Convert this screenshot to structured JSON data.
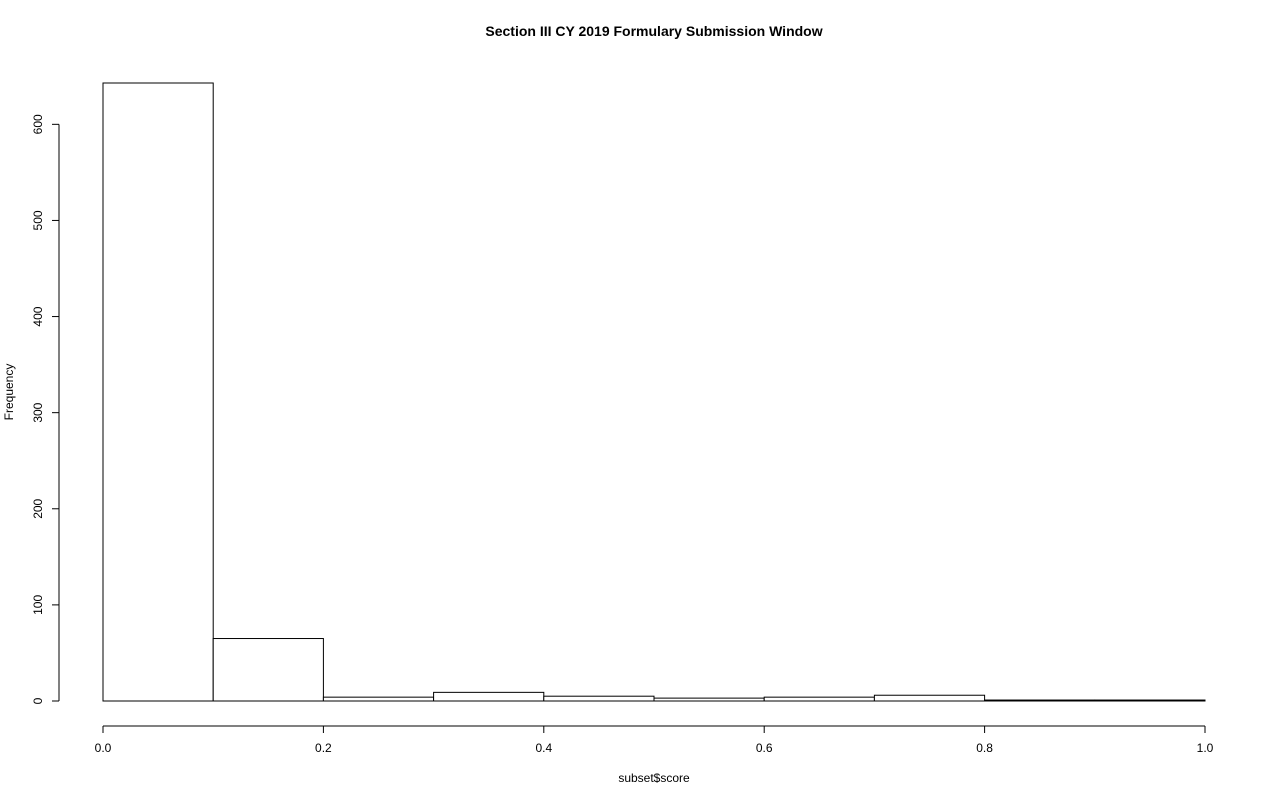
{
  "chart_data": {
    "type": "bar",
    "title": "Section III CY 2019 Formulary Submission Window",
    "xlabel": "subset$score",
    "ylabel": "Frequency",
    "bins": [
      {
        "x0": 0.0,
        "x1": 0.1,
        "count": 643
      },
      {
        "x0": 0.1,
        "x1": 0.2,
        "count": 65
      },
      {
        "x0": 0.2,
        "x1": 0.3,
        "count": 4
      },
      {
        "x0": 0.3,
        "x1": 0.4,
        "count": 9
      },
      {
        "x0": 0.4,
        "x1": 0.5,
        "count": 5
      },
      {
        "x0": 0.5,
        "x1": 0.6,
        "count": 3
      },
      {
        "x0": 0.6,
        "x1": 0.7,
        "count": 4
      },
      {
        "x0": 0.7,
        "x1": 0.8,
        "count": 6
      },
      {
        "x0": 0.8,
        "x1": 0.9,
        "count": 1
      },
      {
        "x0": 0.9,
        "x1": 1.0,
        "count": 1
      }
    ],
    "xlim": [
      0,
      1
    ],
    "ylim": [
      0,
      643
    ],
    "x_ticks": [
      0.0,
      0.2,
      0.4,
      0.6,
      0.8,
      1.0
    ],
    "x_tick_labels": [
      "0.0",
      "0.2",
      "0.4",
      "0.6",
      "0.8",
      "1.0"
    ],
    "y_ticks": [
      0,
      100,
      200,
      300,
      400,
      500,
      600
    ],
    "y_tick_labels": [
      "0",
      "100",
      "200",
      "300",
      "400",
      "500",
      "600"
    ],
    "grid": false,
    "legend": "none"
  }
}
